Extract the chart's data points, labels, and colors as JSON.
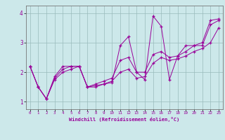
{
  "xlabel": "Windchill (Refroidissement éolien,°C)",
  "xlim": [
    -0.5,
    23.5
  ],
  "ylim": [
    0.75,
    4.25
  ],
  "xticks": [
    0,
    1,
    2,
    3,
    4,
    5,
    6,
    7,
    8,
    9,
    10,
    11,
    12,
    13,
    14,
    15,
    16,
    17,
    18,
    19,
    20,
    21,
    22,
    23
  ],
  "yticks": [
    1,
    2,
    3,
    4
  ],
  "bg_color": "#cce8ea",
  "line_color": "#990099",
  "grid_color": "#99bbbb",
  "series1_x": [
    0,
    1,
    2,
    3,
    4,
    5,
    6,
    7,
    8,
    9,
    10,
    11,
    12,
    13,
    14,
    15,
    16,
    17,
    18,
    19,
    20,
    21,
    22,
    23
  ],
  "series1_y": [
    2.2,
    1.5,
    1.1,
    1.85,
    2.2,
    2.2,
    2.2,
    1.5,
    1.5,
    1.6,
    1.65,
    2.9,
    3.2,
    2.0,
    1.75,
    3.9,
    3.55,
    1.75,
    2.55,
    2.9,
    2.9,
    3.0,
    3.75,
    3.8
  ],
  "series2_x": [
    0,
    1,
    2,
    3,
    4,
    5,
    6,
    7,
    8,
    9,
    10,
    11,
    12,
    13,
    14,
    15,
    16,
    17,
    18,
    19,
    20,
    21,
    22,
    23
  ],
  "series2_y": [
    2.2,
    1.5,
    1.1,
    1.8,
    2.1,
    2.2,
    2.2,
    1.5,
    1.6,
    1.7,
    1.8,
    2.4,
    2.5,
    2.0,
    2.0,
    2.6,
    2.7,
    2.5,
    2.55,
    2.7,
    2.9,
    2.9,
    3.6,
    3.75
  ],
  "series3_x": [
    0,
    1,
    2,
    3,
    4,
    5,
    6,
    7,
    8,
    9,
    10,
    11,
    12,
    13,
    14,
    15,
    16,
    17,
    18,
    19,
    20,
    21,
    22,
    23
  ],
  "series3_y": [
    2.2,
    1.5,
    1.1,
    1.75,
    2.0,
    2.1,
    2.2,
    1.5,
    1.55,
    1.6,
    1.7,
    2.0,
    2.1,
    1.8,
    1.85,
    2.3,
    2.5,
    2.4,
    2.45,
    2.55,
    2.7,
    2.8,
    3.0,
    3.5
  ]
}
